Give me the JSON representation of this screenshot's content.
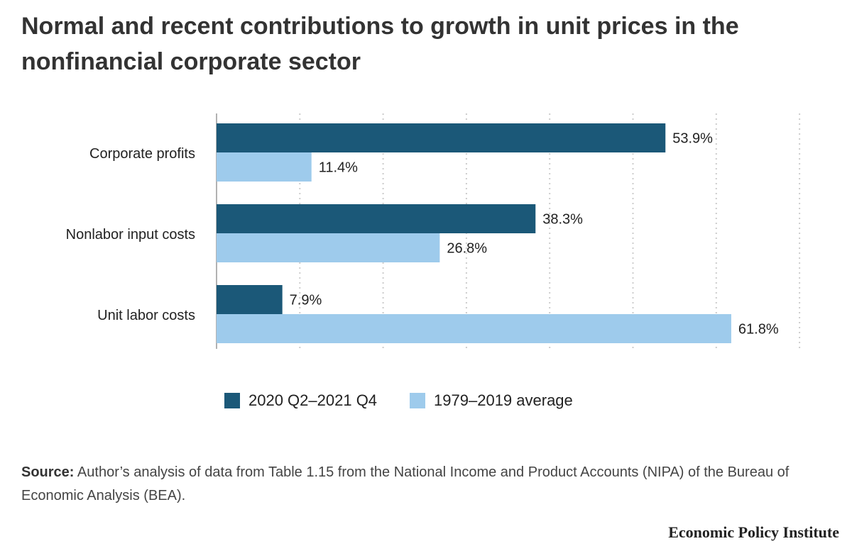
{
  "source": {
    "label": "Source:",
    "text": " Author’s analysis of data from Table 1.15 from the National Income and Product Accounts (NIPA) of the Bureau of Economic Analysis (BEA)."
  },
  "footer": {
    "organization": "Economic Policy Institute"
  },
  "colors": {
    "series_recent": "#1b5878",
    "series_average": "#9ecbec",
    "grid": "#cccccc"
  },
  "chart_data": {
    "type": "bar",
    "orientation": "horizontal",
    "title": "Normal and recent contributions to growth in unit prices in the nonfinancial corporate sector",
    "categories": [
      "Corporate profits",
      "Nonlabor input costs",
      "Unit labor costs"
    ],
    "series": [
      {
        "name": "2020 Q2–2021 Q4",
        "values": [
          53.9,
          38.3,
          7.9
        ],
        "labels": [
          "53.9%",
          "38.3%",
          "7.9%"
        ]
      },
      {
        "name": "1979–2019 average",
        "values": [
          11.4,
          26.8,
          61.8
        ],
        "labels": [
          "11.4%",
          "26.8%",
          "61.8%"
        ]
      }
    ],
    "xlim": [
      0,
      70
    ],
    "grid": true,
    "legend": "bottom"
  }
}
